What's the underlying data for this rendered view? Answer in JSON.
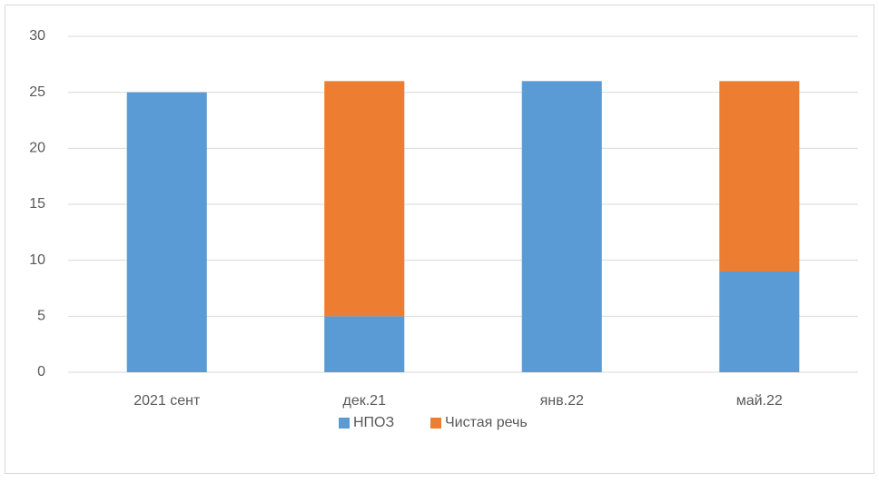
{
  "chart_data": {
    "type": "stacked_bar",
    "categories": [
      "2021 сент",
      "дек.21",
      "янв.22",
      "май.22"
    ],
    "series": [
      {
        "name": "НПОЗ",
        "color": "#5b9bd5",
        "values": [
          25,
          5,
          26,
          9
        ]
      },
      {
        "name": "Чистая речь",
        "color": "#ed7d31",
        "values": [
          0,
          21,
          0,
          17
        ]
      }
    ],
    "ylim": [
      0,
      30
    ],
    "yticks": [
      0,
      5,
      10,
      15,
      20,
      25,
      30
    ],
    "grid": true,
    "legend": "bottom"
  }
}
